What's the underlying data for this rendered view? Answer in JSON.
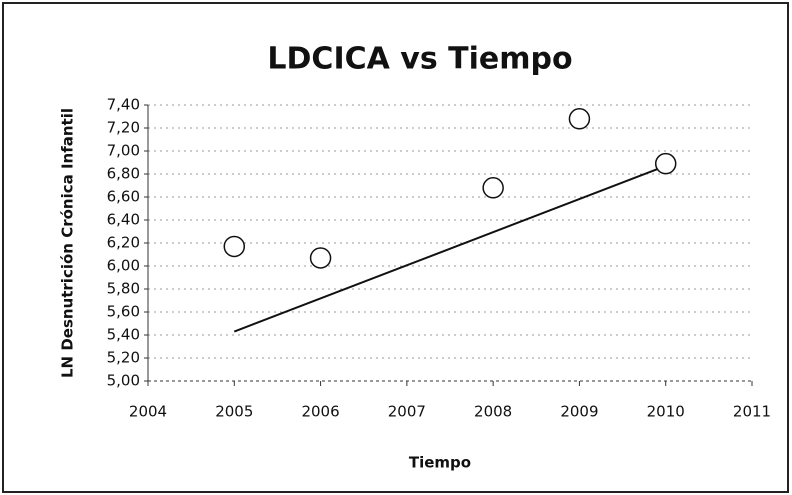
{
  "chart_data": {
    "type": "scatter",
    "title": "LDCICA vs Tiempo",
    "x_label": "Tiempo",
    "y_label": "LN Desnutrición Crónica Infantil",
    "x": [
      2005,
      2006,
      2008,
      2009,
      2010
    ],
    "values": [
      6.17,
      6.07,
      6.68,
      7.28,
      6.89
    ],
    "trendline": {
      "x": [
        2005,
        2010
      ],
      "values": [
        5.43,
        6.87
      ],
      "color": "#111111"
    },
    "marker_color": "#111111",
    "xlim": [
      2004,
      2011
    ],
    "xticks": [
      2004,
      2005,
      2006,
      2007,
      2008,
      2009,
      2010,
      2011
    ],
    "ylim": [
      5.0,
      7.4
    ],
    "yticks": [
      {
        "value": 5.0,
        "label": "5,00"
      },
      {
        "value": 5.2,
        "label": "5,20"
      },
      {
        "value": 5.4,
        "label": "5,40"
      },
      {
        "value": 5.6,
        "label": "5,60"
      },
      {
        "value": 5.8,
        "label": "5,80"
      },
      {
        "value": 6.0,
        "label": "6,00"
      },
      {
        "value": 6.2,
        "label": "6,20"
      },
      {
        "value": 6.4,
        "label": "6,40"
      },
      {
        "value": 6.6,
        "label": "6,60"
      },
      {
        "value": 6.8,
        "label": "6,80"
      },
      {
        "value": 7.0,
        "label": "7,00"
      },
      {
        "value": 7.2,
        "label": "7,20"
      },
      {
        "value": 7.4,
        "label": "7,40"
      }
    ],
    "grid": true
  }
}
